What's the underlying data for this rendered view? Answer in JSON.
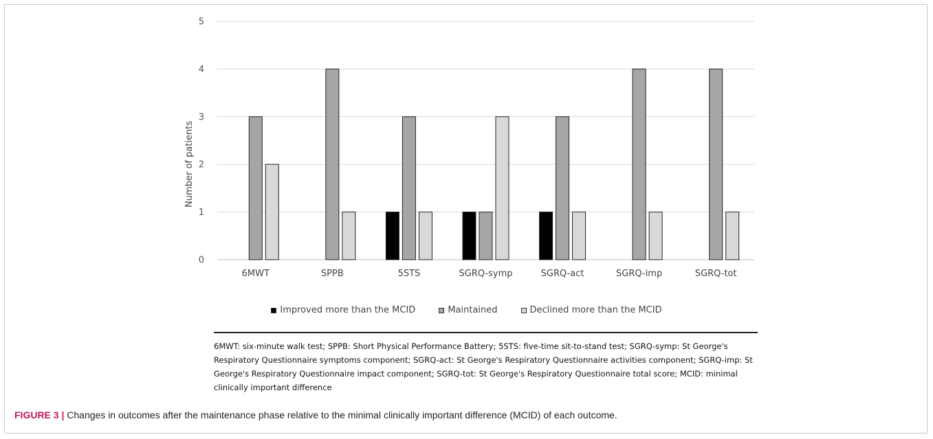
{
  "chart_data": {
    "type": "bar",
    "categories": [
      "6MWT",
      "SPPB",
      "5STS",
      "SGRQ-symp",
      "SGRQ-act",
      "SGRQ-imp",
      "SGRQ-tot"
    ],
    "series": [
      {
        "name": "Improved more than the MCID",
        "values": [
          0,
          0,
          1,
          1,
          1,
          0,
          0
        ],
        "color": "#000000"
      },
      {
        "name": "Maintained",
        "values": [
          3,
          4,
          3,
          1,
          3,
          4,
          4
        ],
        "color": "#a6a6a6"
      },
      {
        "name": "Declined more than the MCID",
        "values": [
          2,
          1,
          1,
          3,
          1,
          1,
          1
        ],
        "color": "#d9d9d9"
      }
    ],
    "ylabel": "Number of patients",
    "xlabel": "",
    "ylim": [
      0,
      5
    ],
    "yticks": [
      "0",
      "1",
      "2",
      "3",
      "4",
      "5"
    ],
    "grid": true,
    "legend_position": "bottom"
  },
  "footnote": "6MWT: six-minute walk test; SPPB: Short Physical Performance Battery; 5STS: five-time sit-to-stand test; SGRQ-symp: St George's Respiratory Questionnaire symptoms component; SGRQ-act: St George's Respiratory Questionnaire activities component; SGRQ-imp: St George's Respiratory Questionnaire impact component; SGRQ-tot: St George's Respiratory Questionnaire total score; MCID: minimal clinically important difference",
  "caption": {
    "label": "FIGURE 3 |",
    "text": " Changes in outcomes after the maintenance phase relative to the minimal clinically important difference (MCID) of each outcome."
  }
}
